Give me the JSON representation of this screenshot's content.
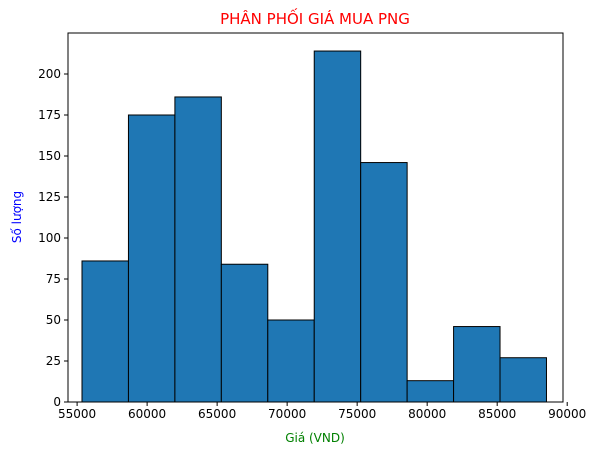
{
  "chart_data": {
    "type": "bar",
    "subtype": "histogram",
    "title": "PHÂN PHỐI GIÁ MUA PNG",
    "xlabel": "Giá (VND)",
    "ylabel": "Số lượng",
    "colors": {
      "title": "#ff0000",
      "xlabel": "#008000",
      "ylabel": "#0000ff",
      "bar_fill": "#1f77b4",
      "bar_edge": "#000000"
    },
    "xlim": [
      54350,
      89700
    ],
    "ylim": [
      0,
      225
    ],
    "x_ticks": [
      55000,
      60000,
      65000,
      70000,
      75000,
      80000,
      85000,
      90000
    ],
    "x_tick_labels": [
      "55000",
      "60000",
      "65000",
      "70000",
      "75000",
      "80000",
      "85000",
      "90000"
    ],
    "y_ticks": [
      0,
      25,
      50,
      75,
      100,
      125,
      150,
      175,
      200
    ],
    "y_tick_labels": [
      "0",
      "25",
      "50",
      "75",
      "100",
      "125",
      "150",
      "175",
      "200"
    ],
    "bin_edges": [
      55350,
      58667,
      61984,
      65301,
      68618,
      71935,
      75252,
      78569,
      81886,
      85203,
      88520
    ],
    "values": [
      86,
      175,
      186,
      84,
      50,
      214,
      146,
      13,
      46,
      27
    ],
    "grid": false
  }
}
